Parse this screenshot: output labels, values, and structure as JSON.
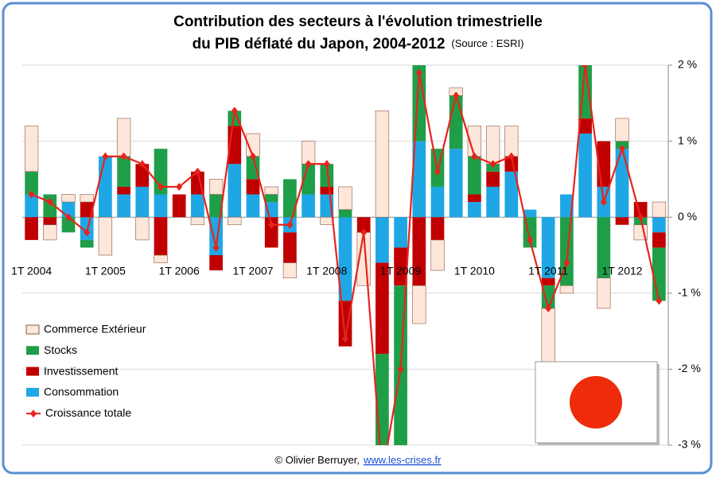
{
  "chart_data": {
    "type": "bar",
    "title": [
      "Contribution des secteurs à l'évolution trimestrielle",
      "du PIB déflaté du Japon, 2004-2012"
    ],
    "subtitle": "(Source : ESRI)",
    "categories": [
      "1T 2004",
      null,
      null,
      null,
      "1T 2005",
      null,
      null,
      null,
      "1T 2006",
      null,
      null,
      null,
      "1T 2007",
      null,
      null,
      null,
      "1T 2008",
      null,
      null,
      null,
      "1T 2009",
      null,
      null,
      null,
      "1T 2010",
      null,
      null,
      null,
      "1T 2011",
      null,
      null,
      null,
      "1T 2012",
      null,
      null
    ],
    "series": [
      {
        "name": "Consommation",
        "color": "#1ea7e4",
        "values": [
          0.3,
          0,
          0.2,
          -0.3,
          0.8,
          0.3,
          0.4,
          0.3,
          0,
          0.3,
          -0.5,
          0.7,
          0.3,
          0.2,
          -0.2,
          0.3,
          0.3,
          -1.1,
          0,
          -0.6,
          -0.4,
          1.0,
          0.4,
          0.9,
          0.2,
          0.4,
          0.6,
          0.1,
          -0.8,
          0.3,
          1.1,
          0.4,
          0.9,
          0,
          -0.2
        ]
      },
      {
        "name": "Investissement",
        "color": "#c00000",
        "values": [
          -0.3,
          -0.1,
          0,
          0.2,
          0,
          0.1,
          0.3,
          -0.5,
          0.3,
          0.3,
          -0.2,
          0.5,
          0.2,
          -0.4,
          -0.4,
          0,
          0.1,
          -0.6,
          -0.2,
          -1.2,
          -0.5,
          -0.9,
          -0.3,
          0,
          0.1,
          0.2,
          0.2,
          0,
          -0.1,
          0,
          0.2,
          0.6,
          -0.1,
          0.2,
          -0.2
        ]
      },
      {
        "name": "Stocks",
        "color": "#1f9e48",
        "values": [
          0.3,
          0.3,
          -0.2,
          -0.1,
          0,
          0.4,
          0,
          0.6,
          0,
          0,
          0.3,
          0.2,
          0.3,
          0.1,
          0.5,
          0.4,
          0.3,
          0.1,
          0,
          -1.4,
          -2.2,
          1.1,
          0.5,
          0.7,
          0.5,
          0.1,
          0,
          -0.4,
          -0.3,
          -0.9,
          0.8,
          -0.8,
          0.1,
          -0.1,
          -0.7
        ]
      },
      {
        "name": "Commerce Extérieur",
        "color": "#fde6da",
        "values": [
          0.6,
          -0.2,
          0.1,
          0.1,
          -0.5,
          0.5,
          -0.3,
          -0.1,
          0,
          -0.1,
          0.2,
          -0.1,
          0.3,
          0.1,
          -0.2,
          0.3,
          -0.1,
          0.3,
          -0.7,
          1.4,
          0,
          -0.5,
          -0.4,
          0.1,
          0.4,
          0.5,
          0.4,
          0,
          -0.8,
          -0.1,
          0,
          -0.4,
          0.3,
          -0.2,
          0.2
        ]
      }
    ],
    "line": {
      "name": "Croissance totale",
      "color": "#e8231c",
      "values": [
        0.3,
        0.2,
        0,
        -0.2,
        0.8,
        0.8,
        0.7,
        0.4,
        0.4,
        0.6,
        -0.4,
        1.4,
        0.8,
        -0.1,
        -0.1,
        0.7,
        0.7,
        -1.6,
        -0.2,
        -3.4,
        -2.0,
        1.9,
        0.6,
        1.6,
        0.8,
        0.7,
        0.8,
        -0.3,
        -1.2,
        -0.6,
        2.0,
        0.2,
        0.9,
        0,
        -1.1
      ]
    },
    "ylim": [
      -3,
      2
    ],
    "yticks": [
      {
        "value": -3,
        "label": "-3 %"
      },
      {
        "value": -2,
        "label": "-2 %"
      },
      {
        "value": -1,
        "label": "-1 %"
      },
      {
        "value": 0,
        "label": "0 %"
      },
      {
        "value": 1,
        "label": "1 %"
      },
      {
        "value": 2,
        "label": "2 %"
      }
    ],
    "grid": true,
    "legend": "left",
    "footer": {
      "text": "© Olivier Berruyer,",
      "link": "www.les-crises.fr"
    }
  }
}
